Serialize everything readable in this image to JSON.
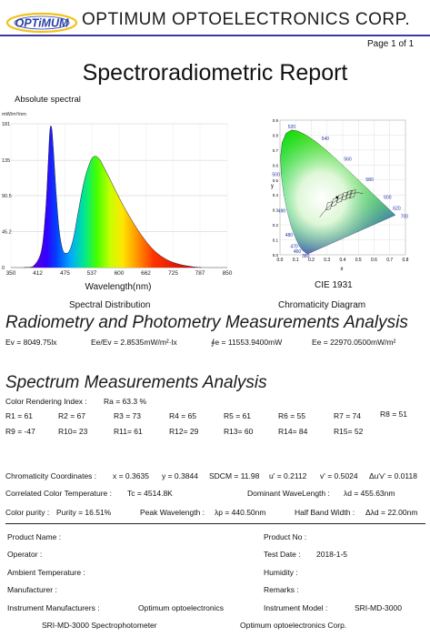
{
  "header": {
    "logo_text": "OPTiMUM",
    "company": "OPTIMUM OPTOELECTRONICS CORP.",
    "page": "Page 1 of 1"
  },
  "report_title": "Spectroradiometric Report",
  "spectrum": {
    "label": "Absolute spectral",
    "unit": "mW/m²/nm",
    "caption": "Spectral Distribution",
    "chart_data": {
      "type": "area",
      "x_label": "Wavelength(nm)",
      "x_ticks": [
        350,
        412,
        475,
        537,
        600,
        662,
        725,
        787,
        850
      ],
      "y_ticks": [
        0,
        45.2,
        90.5,
        135,
        181
      ],
      "xlim": [
        350,
        850
      ],
      "ylim": [
        0,
        181
      ],
      "x": [
        380,
        400,
        420,
        430,
        436,
        440,
        444,
        448,
        455,
        462,
        470,
        478,
        486,
        495,
        505,
        520,
        535,
        545,
        555,
        565,
        580,
        600,
        620,
        650,
        680,
        710,
        740,
        770,
        790
      ],
      "y": [
        0,
        1,
        20,
        70,
        130,
        172,
        176,
        150,
        90,
        45,
        22,
        18,
        22,
        38,
        68,
        110,
        135,
        140,
        136,
        126,
        110,
        88,
        68,
        42,
        22,
        10,
        4,
        1,
        0
      ]
    }
  },
  "cie": {
    "name": "CIE 1931",
    "caption": "Chromaticity Diagram",
    "x_axis": "x",
    "y_axis": "y",
    "x_ticks": [
      "0.0",
      "0.1",
      "0.2",
      "0.3",
      "0.4",
      "0.5",
      "0.6",
      "0.7",
      "0.8"
    ],
    "y_ticks": [
      "0.0",
      "0.1",
      "0.2",
      "0.3",
      "0.4",
      "0.5",
      "0.6",
      "0.7",
      "0.8",
      "0.9"
    ],
    "wl_labels": [
      "520",
      "540",
      "560",
      "580",
      "600",
      "620",
      "700",
      "500",
      "490",
      "480",
      "470",
      "460",
      "380"
    ],
    "point": {
      "x": 0.3635,
      "y": 0.3844
    }
  },
  "radiometry": {
    "heading": "Radiometry and Photometry Measurements Analysis",
    "ev": "Ev = 8049.75lx",
    "ee_ev": "Ee/Ev = 2.8535mW/m²·lx",
    "phi_e": "∮e = 11553.9400mW",
    "ee": "Ee = 22970.0500mW/m²"
  },
  "spectrum_analysis": {
    "heading": "Spectrum Measurements Analysis",
    "cri_label": "Color Rendering Index :",
    "ra": "Ra = 63.3 %",
    "r_row1": [
      "R1 = 61",
      "R2 = 67",
      "R3 = 73",
      "R4 = 65",
      "R5 = 61",
      "R6 = 55",
      "R7 = 74",
      "R8 = 51"
    ],
    "r_row2": [
      "R9 = -47",
      "R10= 23",
      "R11= 61",
      "R12= 29",
      "R13= 60",
      "R14= 84",
      "R15= 52"
    ]
  },
  "chromaticity": {
    "label": "Chromaticity Coordinates :",
    "x": "x = 0.3635",
    "y": "y = 0.3844",
    "sdcm": "SDCM = 11.98",
    "u": "u' = 0.2112",
    "v": "v' = 0.5024",
    "duv": "Δu'v' = 0.0118",
    "cct_label": "Correlated Color Temperature :",
    "tc": "Tc = 4514.8K",
    "dom_label": "Dominant WaveLength :",
    "ld": "λd = 455.63nm",
    "purity_label": "Color purity :",
    "purity": "Purity = 16.51%",
    "peak_label": "Peak Wavelength :",
    "lp": "λp = 440.50nm",
    "hbw_label": "Half Band Width :",
    "dl": "Δλd = 22.00nm"
  },
  "info": {
    "product_name": "Product Name :",
    "product_no": "Product No :",
    "operator": "Operator :",
    "test_date_label": "Test Date :",
    "test_date": "2018-1-5",
    "ambient": "Ambient Temperature :",
    "humidity": "Humidity :",
    "manufacturer": "Manufacturer :",
    "remarks": "Remarks :",
    "inst_mfr_label": "Instrument Manufacturers :",
    "inst_mfr": "Optimum optoelectronics",
    "inst_model_label": "Instrument Model :",
    "inst_model": "SRI-MD-3000",
    "footer_left": "SRI-MD-3000 Spectrophotometer",
    "footer_right": "Optimum optoelectronics Corp."
  },
  "colors": {
    "brand_blue": "#2b3fa8",
    "logo_yellow": "#f2c21b",
    "heading_line": "#3a3aa8"
  }
}
